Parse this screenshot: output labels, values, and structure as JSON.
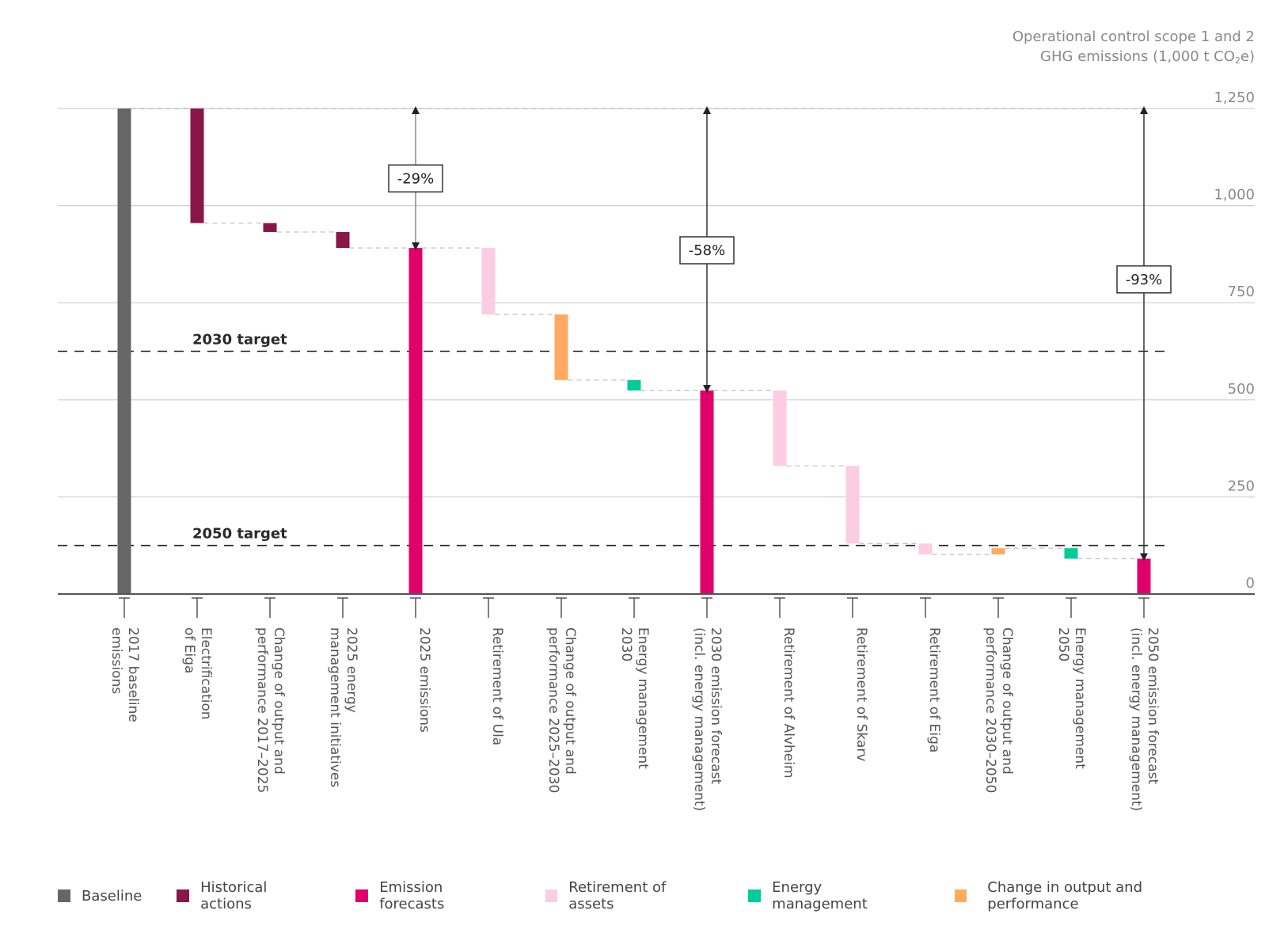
{
  "chart_data": {
    "type": "bar",
    "subtype": "waterfall",
    "title": "",
    "ylabel_line1": "Operational control scope 1 and 2",
    "ylabel_line2_pre": "GHG emissions (1,000 t CO",
    "ylabel_line2_sub": "2",
    "ylabel_line2_post": "e)",
    "ylim": [
      0,
      1250
    ],
    "yticks": [
      0,
      250,
      500,
      750,
      1000,
      1250
    ],
    "ytick_labels": [
      "0",
      "250",
      "500",
      "750",
      "1,000",
      "1,250"
    ],
    "grid": true,
    "legend_position": "bottom",
    "categories": [
      {
        "lines": [
          "2017 baseline",
          "emissions"
        ],
        "group": "baseline",
        "start": 0,
        "end": 1250
      },
      {
        "lines": [
          "Electrification",
          "of Eiga"
        ],
        "group": "historical",
        "start": 1250,
        "end": 955
      },
      {
        "lines": [
          "Change of output and",
          "performance 2017–2025"
        ],
        "group": "historical",
        "start": 955,
        "end": 932
      },
      {
        "lines": [
          "2025 energy",
          "management initiatives"
        ],
        "group": "historical",
        "start": 932,
        "end": 891
      },
      {
        "lines": [
          "2025 emissions"
        ],
        "group": "forecast",
        "start": 0,
        "end": 891
      },
      {
        "lines": [
          "Retirement of Ula"
        ],
        "group": "retirement",
        "start": 891,
        "end": 720
      },
      {
        "lines": [
          "Change of output and",
          "performance 2025–2030"
        ],
        "group": "change",
        "start": 720,
        "end": 551
      },
      {
        "lines": [
          "Energy management",
          "2030"
        ],
        "group": "energy",
        "start": 551,
        "end": 524
      },
      {
        "lines": [
          "2030 emission forecast",
          "(incl. energy management)"
        ],
        "group": "forecast",
        "start": 0,
        "end": 524
      },
      {
        "lines": [
          "Retirement of Alvheim"
        ],
        "group": "retirement",
        "start": 524,
        "end": 330
      },
      {
        "lines": [
          "Retirement of Skarv"
        ],
        "group": "retirement",
        "start": 330,
        "end": 130
      },
      {
        "lines": [
          "Retirement of Eiga"
        ],
        "group": "retirement",
        "start": 130,
        "end": 102
      },
      {
        "lines": [
          "Change of output and",
          "performance 2030–2050"
        ],
        "group": "change",
        "start": 102,
        "end": 118
      },
      {
        "lines": [
          "Energy management",
          "2050"
        ],
        "group": "energy",
        "start": 118,
        "end": 91
      },
      {
        "lines": [
          "2050 emission forecast",
          "(incl. energy management)"
        ],
        "group": "forecast",
        "start": 0,
        "end": 91
      }
    ],
    "targets": [
      {
        "label": "2030 target",
        "value": 625
      },
      {
        "label": "2050 target",
        "value": 125
      }
    ],
    "reduction_annotations": [
      {
        "label": "-29%",
        "category_index": 4,
        "from": 1250,
        "to": 891,
        "label_value": 1070
      },
      {
        "label": "-58%",
        "category_index": 8,
        "from": 1250,
        "to": 524,
        "label_value": 885
      },
      {
        "label": "-93%",
        "category_index": 14,
        "from": 1250,
        "to": 91,
        "label_value": 810
      }
    ],
    "legend": [
      {
        "key": "baseline",
        "label": "Baseline",
        "color": "#666666"
      },
      {
        "key": "historical",
        "label": "Historical actions",
        "color": "#8a1548"
      },
      {
        "key": "forecast",
        "label": "Emission forecasts",
        "color": "#e0006b"
      },
      {
        "key": "retirement",
        "label": "Retirement of assets",
        "color": "#fccde2"
      },
      {
        "key": "energy",
        "label": "Energy management",
        "color": "#00cc99"
      },
      {
        "key": "change",
        "label": "Change in output and performance",
        "color": "#ffaa60"
      }
    ]
  }
}
